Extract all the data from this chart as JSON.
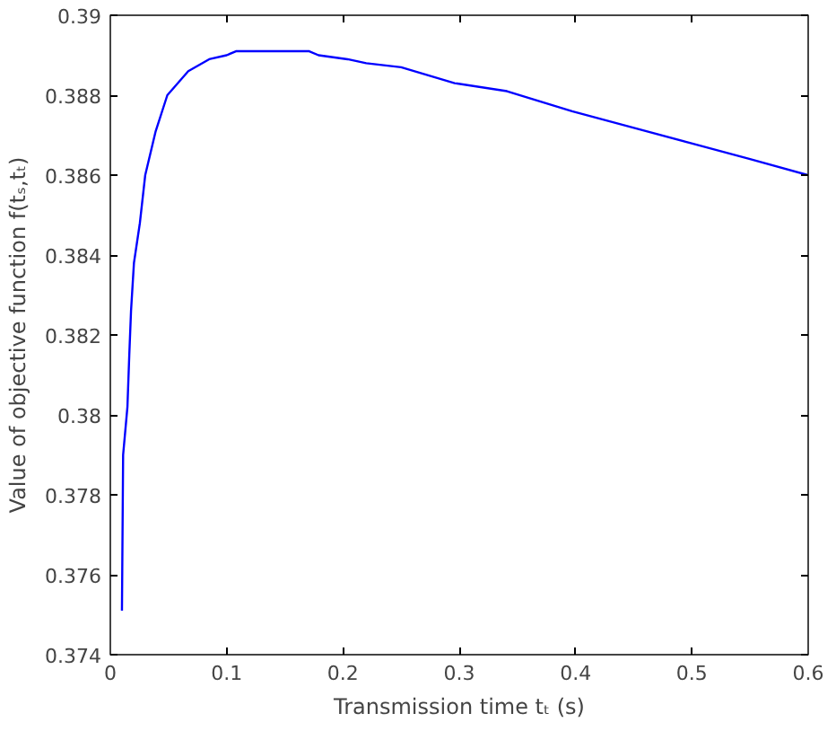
{
  "chart_data": {
    "type": "line",
    "xlabel": "Transmission time tₜ (s)",
    "ylabel": "Value of objective function f(tₛ,tₜ)",
    "x": [
      0.01,
      0.011,
      0.0147,
      0.0163,
      0.0178,
      0.0203,
      0.0254,
      0.03,
      0.039,
      0.049,
      0.067,
      0.085,
      0.1,
      0.108,
      0.171,
      0.179,
      0.204,
      0.22,
      0.25,
      0.296,
      0.341,
      0.397,
      0.448,
      0.499,
      0.55,
      0.6
    ],
    "series": [
      {
        "color": "#0000ff",
        "values": [
          0.3751,
          0.379,
          0.3802,
          0.3815,
          0.3826,
          0.3838,
          0.3848,
          0.386,
          0.3871,
          0.388,
          0.3886,
          0.3889,
          0.389,
          0.3891,
          0.3891,
          0.389,
          0.3889,
          0.3888,
          0.3887,
          0.3883,
          0.3881,
          0.3876,
          0.3872,
          0.3868,
          0.3864,
          0.386
        ]
      }
    ],
    "xlim": [
      0,
      0.6
    ],
    "ylim": [
      0.374,
      0.39
    ],
    "xticks": [
      0,
      0.1,
      0.2,
      0.3,
      0.4,
      0.5,
      0.6
    ],
    "yticks": [
      0.374,
      0.376,
      0.378,
      0.38,
      0.382,
      0.384,
      0.386,
      0.388,
      0.39
    ],
    "grid": false,
    "marker": "none",
    "line_style": "solid"
  }
}
